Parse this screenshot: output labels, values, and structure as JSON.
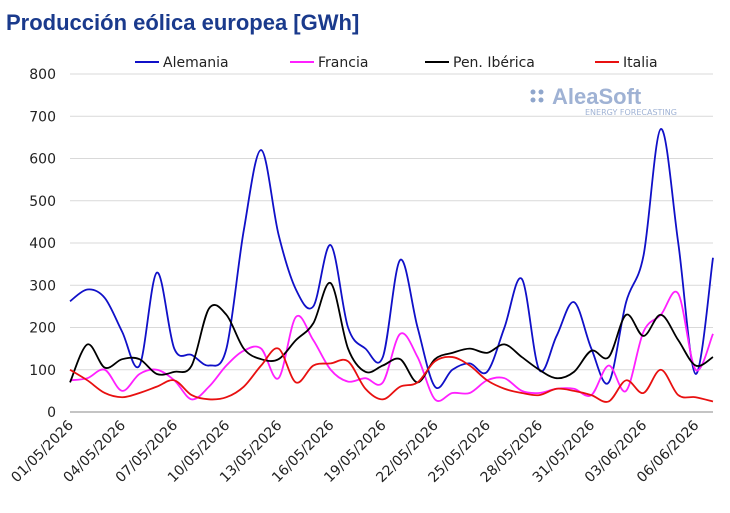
{
  "chart_data": {
    "type": "line",
    "title": "Producción eólica europea [GWh]",
    "logo": {
      "name": "AleaSoft",
      "tagline": "ENERGY FORECASTING"
    },
    "categories": [
      "01/05/2026",
      null,
      null,
      "04/05/2026",
      null,
      null,
      "07/05/2026",
      null,
      null,
      "10/05/2026",
      null,
      null,
      "13/05/2026",
      null,
      null,
      "16/05/2026",
      null,
      null,
      "19/05/2026",
      null,
      null,
      "22/05/2026",
      null,
      null,
      "25/05/2026",
      null,
      null,
      "28/05/2026",
      null,
      null,
      "31/05/2026",
      null,
      null,
      "03/06/2026",
      null,
      null,
      "06/06/2026",
      null
    ],
    "series": [
      {
        "name": "Alemania",
        "color": "#1010c8",
        "values": [
          262,
          290,
          270,
          190,
          110,
          330,
          150,
          135,
          110,
          150,
          430,
          620,
          420,
          290,
          250,
          395,
          200,
          150,
          130,
          360,
          200,
          60,
          100,
          115,
          95,
          200,
          315,
          100,
          180,
          260,
          150,
          70,
          260,
          370,
          670,
          400,
          90,
          365
        ]
      },
      {
        "name": "Francia",
        "color": "#ff20ff",
        "values": [
          75,
          80,
          100,
          50,
          90,
          100,
          75,
          30,
          60,
          110,
          145,
          150,
          80,
          225,
          170,
          100,
          72,
          80,
          70,
          185,
          130,
          30,
          45,
          45,
          75,
          80,
          50,
          45,
          55,
          55,
          40,
          110,
          50,
          190,
          230,
          280,
          100,
          185
        ]
      },
      {
        "name": "Pen. Ibérica",
        "color": "#000000",
        "values": [
          70,
          160,
          105,
          125,
          125,
          90,
          95,
          110,
          245,
          230,
          150,
          125,
          125,
          170,
          210,
          305,
          150,
          95,
          110,
          125,
          70,
          125,
          140,
          150,
          140,
          160,
          130,
          100,
          80,
          95,
          145,
          130,
          230,
          180,
          230,
          170,
          110,
          130
        ]
      },
      {
        "name": "Italia",
        "color": "#e81010",
        "values": [
          100,
          75,
          45,
          35,
          45,
          60,
          75,
          40,
          30,
          35,
          60,
          110,
          150,
          70,
          110,
          115,
          120,
          55,
          30,
          60,
          70,
          120,
          130,
          110,
          75,
          55,
          45,
          40,
          55,
          50,
          40,
          25,
          75,
          45,
          100,
          40,
          35,
          25
        ]
      }
    ],
    "ylim": [
      0,
      800
    ],
    "yticks": [
      0,
      100,
      200,
      300,
      400,
      500,
      600,
      700,
      800
    ],
    "grid": true,
    "legend": "top"
  }
}
